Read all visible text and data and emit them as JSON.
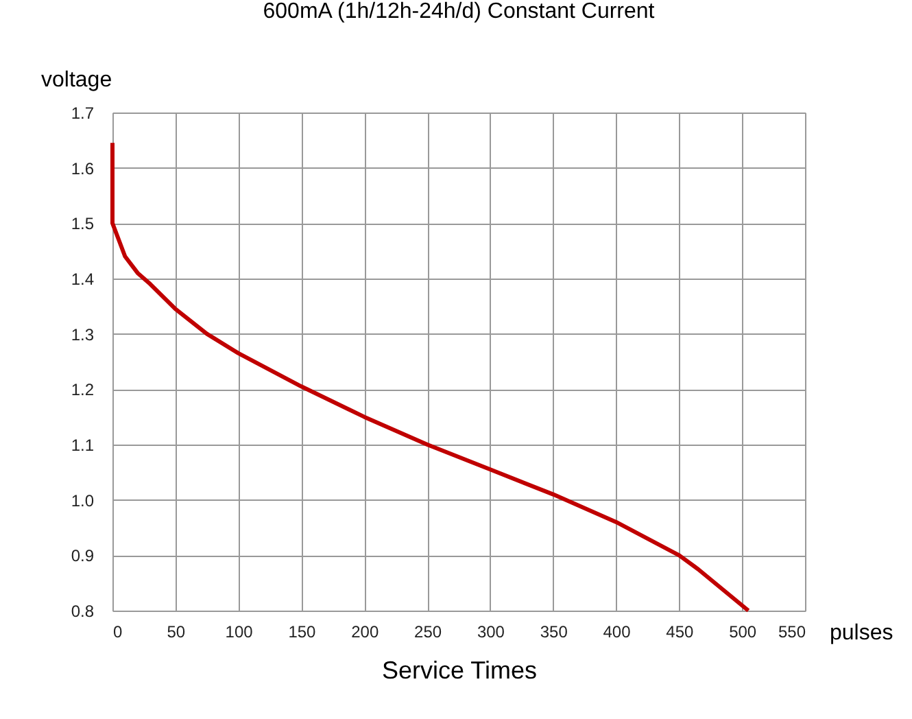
{
  "chart_data": {
    "type": "line",
    "title": "600mA (1h/12h-24h/d) Constant Current",
    "xlabel": "Service Times",
    "ylabel": "voltage",
    "annotations": [
      "pulses"
    ],
    "series": [
      {
        "color": "#c00000",
        "x": [
          0,
          0,
          5,
          10,
          20,
          30,
          50,
          75,
          100,
          150,
          200,
          250,
          300,
          350,
          400,
          450,
          465,
          505
        ],
        "values": [
          1.645,
          1.5,
          1.47,
          1.44,
          1.41,
          1.39,
          1.345,
          1.3,
          1.265,
          1.205,
          1.15,
          1.1,
          1.055,
          1.01,
          0.96,
          0.9,
          0.875,
          0.8
        ]
      }
    ],
    "xlim": [
      0,
      550
    ],
    "xticks": [
      0,
      50,
      100,
      150,
      200,
      250,
      300,
      350,
      400,
      450,
      500,
      550
    ],
    "ylim": [
      0.8,
      1.7
    ],
    "yticks": [
      {
        "value": 0.8,
        "label": "0.8"
      },
      {
        "value": 0.9,
        "label": "0.9"
      },
      {
        "value": 1.0,
        "label": "1.0"
      },
      {
        "value": 1.1,
        "label": "1.1"
      },
      {
        "value": 1.2,
        "label": "1.2"
      },
      {
        "value": 1.3,
        "label": "1.3"
      },
      {
        "value": 1.4,
        "label": "1.4"
      },
      {
        "value": 1.5,
        "label": "1.5"
      },
      {
        "value": 1.6,
        "label": "1.6"
      },
      {
        "value": 1.7,
        "label": "1.7"
      }
    ],
    "grid": true,
    "marker": "none",
    "line_style": "solid"
  }
}
